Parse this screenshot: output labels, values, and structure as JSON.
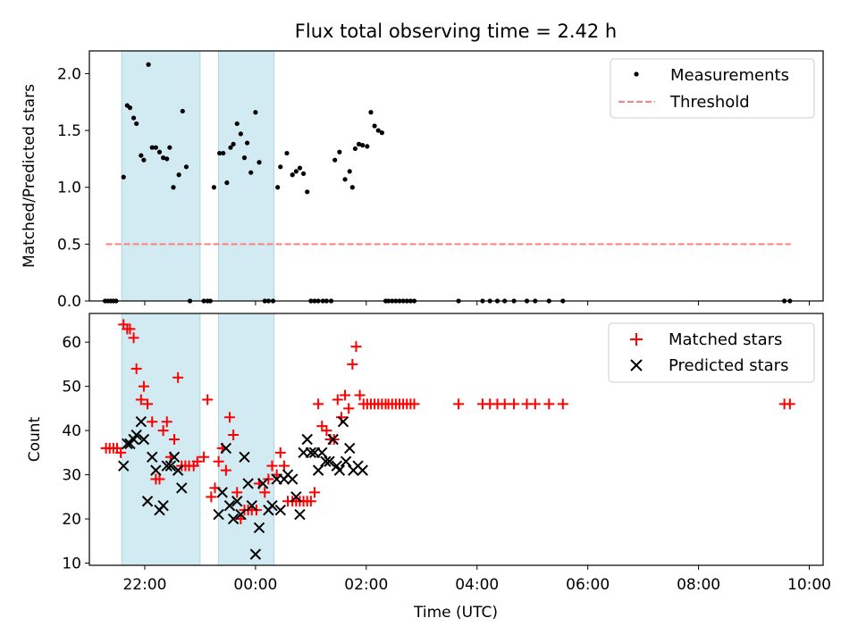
{
  "chart_data": [
    {
      "type": "scatter",
      "title": "Flux total observing time = 2.42 h",
      "ylabel": "Matched/Predicted stars",
      "xlabel": "",
      "xlim": [
        "21:00",
        "10:15"
      ],
      "ylim": [
        0,
        2.2
      ],
      "yticks": [
        "0.0",
        "0.5",
        "1.0",
        "1.5",
        "2.0"
      ],
      "legend_position": "top-right",
      "legend": [
        "Measurements",
        "Threshold"
      ],
      "shaded_intervals": [
        [
          "21:35",
          "23:00"
        ],
        [
          "23:20",
          "00:20"
        ]
      ],
      "threshold": {
        "name": "Threshold",
        "value": 0.5,
        "x_range": [
          "21:18",
          "09:40"
        ],
        "color": "#ff7f7f"
      },
      "series": [
        {
          "name": "Measurements",
          "color": "#000000",
          "x": [
            "21:17",
            "21:20",
            "21:23",
            "21:26",
            "21:29",
            "21:37",
            "21:41",
            "21:44",
            "21:48",
            "21:51",
            "21:56",
            "21:59",
            "22:04",
            "22:08",
            "22:12",
            "22:16",
            "22:20",
            "22:24",
            "22:27",
            "22:31",
            "22:37",
            "22:41",
            "22:45",
            "22:49",
            "23:04",
            "23:08",
            "23:11",
            "23:15",
            "23:21",
            "23:25",
            "23:29",
            "23:33",
            "23:36",
            "23:40",
            "23:44",
            "23:48",
            "23:51",
            "23:55",
            "00:00",
            "00:04",
            "00:10",
            "00:14",
            "00:19",
            "00:24",
            "00:27",
            "00:34",
            "00:40",
            "00:44",
            "00:48",
            "00:52",
            "00:56",
            "01:00",
            "01:04",
            "01:08",
            "01:13",
            "01:17",
            "01:22",
            "01:26",
            "01:31",
            "01:37",
            "01:42",
            "01:45",
            "01:48",
            "01:52",
            "01:56",
            "02:01",
            "02:05",
            "02:09",
            "02:13",
            "02:17",
            "02:21",
            "02:24",
            "02:28",
            "02:32",
            "02:36",
            "02:40",
            "02:44",
            "02:48",
            "02:52",
            "03:40",
            "04:06",
            "04:14",
            "04:22",
            "04:30",
            "04:40",
            "04:54",
            "05:03",
            "05:18",
            "05:33",
            "09:33",
            "09:39"
          ],
          "y": [
            0,
            0,
            0,
            0,
            0,
            1.09,
            1.72,
            1.7,
            1.61,
            1.56,
            1.28,
            1.24,
            2.08,
            1.35,
            1.35,
            1.31,
            1.26,
            1.25,
            1.35,
            1.0,
            1.11,
            1.67,
            1.18,
            0,
            0,
            0,
            0,
            1.0,
            1.3,
            1.3,
            1.04,
            1.35,
            1.38,
            1.56,
            1.47,
            1.26,
            1.39,
            1.13,
            1.66,
            1.22,
            0,
            0,
            0,
            1.0,
            1.18,
            1.3,
            1.11,
            1.14,
            1.17,
            1.12,
            0.96,
            0,
            0,
            0,
            0,
            0,
            0,
            1.24,
            1.31,
            1.07,
            1.14,
            1.0,
            1.34,
            1.38,
            1.37,
            1.36,
            1.66,
            1.54,
            1.5,
            1.48,
            0,
            0,
            0,
            0,
            0,
            0,
            0,
            0,
            0,
            0,
            0,
            0,
            0,
            0,
            0,
            0,
            0,
            0,
            0,
            0,
            0
          ]
        }
      ]
    },
    {
      "type": "scatter",
      "title": "",
      "xlabel": "Time (UTC)",
      "ylabel": "Count",
      "xlim": [
        "21:00",
        "10:15"
      ],
      "ylim": [
        9.5,
        66.5
      ],
      "yticks": [
        "10",
        "20",
        "30",
        "40",
        "50",
        "60"
      ],
      "xticks": [
        "22:00",
        "00:00",
        "02:00",
        "04:00",
        "06:00",
        "08:00",
        "10:00"
      ],
      "legend_position": "top-right",
      "legend": [
        "Matched stars",
        "Predicted stars"
      ],
      "shaded_intervals": [
        [
          "21:35",
          "23:00"
        ],
        [
          "23:20",
          "00:20"
        ]
      ],
      "series": [
        {
          "name": "Matched stars",
          "color": "#ff0000",
          "marker": "plus",
          "x": [
            "21:18",
            "21:22",
            "21:26",
            "21:30",
            "21:34",
            "21:37",
            "21:41",
            "21:44",
            "21:48",
            "21:51",
            "21:56",
            "21:59",
            "22:03",
            "22:08",
            "22:12",
            "22:16",
            "22:20",
            "22:24",
            "22:28",
            "22:32",
            "22:36",
            "22:40",
            "22:44",
            "22:48",
            "22:53",
            "22:57",
            "23:04",
            "23:08",
            "23:12",
            "23:16",
            "23:20",
            "23:24",
            "23:28",
            "23:32",
            "23:36",
            "23:40",
            "23:44",
            "23:48",
            "23:52",
            "23:56",
            "00:01",
            "00:04",
            "00:10",
            "00:14",
            "00:18",
            "00:23",
            "00:27",
            "00:31",
            "00:35",
            "00:40",
            "00:44",
            "00:48",
            "00:52",
            "00:56",
            "01:00",
            "01:04",
            "01:08",
            "01:12",
            "01:17",
            "01:21",
            "01:25",
            "01:29",
            "01:33",
            "01:37",
            "01:41",
            "01:45",
            "01:49",
            "01:53",
            "01:57",
            "02:01",
            "02:05",
            "02:09",
            "02:13",
            "02:17",
            "02:21",
            "02:24",
            "02:28",
            "02:32",
            "02:36",
            "02:40",
            "02:44",
            "02:48",
            "02:52",
            "03:40",
            "04:06",
            "04:14",
            "04:22",
            "04:30",
            "04:40",
            "04:54",
            "05:03",
            "05:18",
            "05:33",
            "09:33",
            "09:39"
          ],
          "y": [
            36,
            36,
            36,
            36,
            35,
            64,
            63,
            63,
            61,
            54,
            47,
            50,
            46,
            42,
            29,
            29,
            40,
            42,
            34,
            38,
            52,
            32,
            32,
            32,
            32,
            33,
            34,
            47,
            25,
            27,
            33,
            36,
            31,
            43,
            39,
            26,
            20,
            22,
            22,
            22,
            22,
            28,
            26,
            29,
            32,
            30,
            35,
            32,
            24,
            24,
            24,
            24,
            24,
            24,
            24,
            26,
            46,
            41,
            40,
            38,
            38,
            47,
            43,
            48,
            45,
            55,
            59,
            48,
            46,
            46,
            46,
            46,
            46,
            46,
            46,
            46,
            46,
            46,
            46,
            46,
            46,
            46,
            46,
            46,
            46,
            46,
            46,
            46,
            46,
            46,
            46,
            46,
            46,
            46,
            46
          ]
        },
        {
          "name": "Predicted stars",
          "color": "#000000",
          "marker": "x",
          "x": [
            "21:37",
            "21:41",
            "21:44",
            "21:48",
            "21:51",
            "21:56",
            "21:59",
            "22:03",
            "22:08",
            "22:12",
            "22:16",
            "22:20",
            "22:24",
            "22:28",
            "22:32",
            "22:36",
            "22:40",
            "23:20",
            "23:24",
            "23:28",
            "23:32",
            "23:36",
            "23:40",
            "23:44",
            "23:48",
            "23:52",
            "23:56",
            "00:00",
            "00:04",
            "00:08",
            "00:14",
            "00:18",
            "00:23",
            "00:27",
            "00:31",
            "00:35",
            "00:40",
            "00:44",
            "00:48",
            "00:52",
            "00:56",
            "01:00",
            "01:04",
            "01:08",
            "01:12",
            "01:16",
            "01:20",
            "01:24",
            "01:28",
            "01:31",
            "01:35",
            "01:38",
            "01:42",
            "01:46",
            "01:51",
            "01:56"
          ],
          "y": [
            32,
            37,
            37,
            38,
            39,
            42,
            38,
            24,
            34,
            31,
            22,
            23,
            32,
            32,
            34,
            31,
            27,
            21,
            26,
            36,
            23,
            20,
            24,
            21,
            34,
            28,
            23,
            12,
            18,
            28,
            22,
            23,
            29,
            22,
            29,
            30,
            29,
            25,
            21,
            35,
            38,
            35,
            35,
            31,
            35,
            33,
            33,
            38,
            32,
            31,
            42,
            33,
            36,
            31,
            32,
            31
          ]
        }
      ]
    }
  ]
}
